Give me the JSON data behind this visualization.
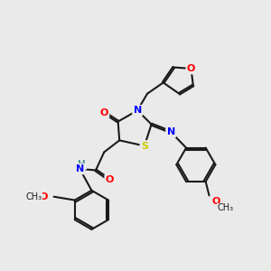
{
  "background_color": "#eaeaea",
  "atom_colors": {
    "O": "#ff0000",
    "N": "#0000ff",
    "S": "#cccc00",
    "C": "#1a1a1a",
    "H": "#4a9090"
  },
  "figsize": [
    3.0,
    3.0
  ],
  "dpi": 100,
  "lw": 1.5,
  "fs": 8.0,
  "doff": 2.8
}
